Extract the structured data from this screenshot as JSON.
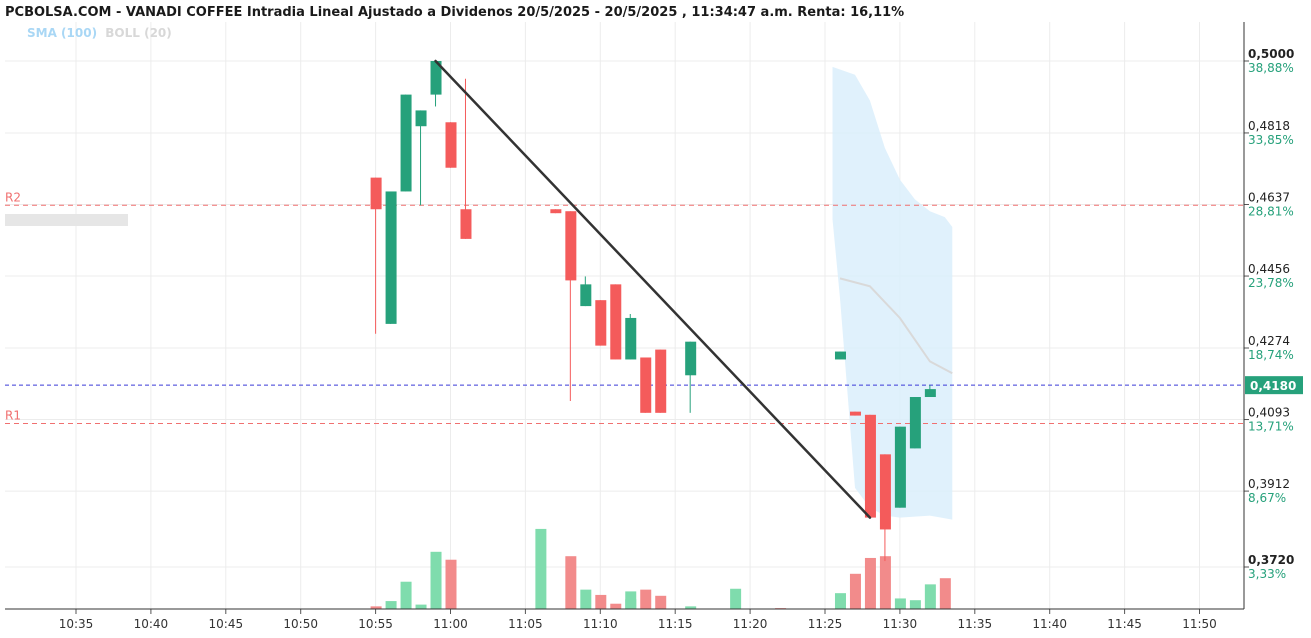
{
  "header": {
    "title": "PCBOLSA.COM - VANADI COFFEE Intradia Lineal Ajustado a Dividenos 20/5/2025 - 20/5/2025 , 11:34:47 a.m. Renta: 16,11%"
  },
  "legend": {
    "sma_label": "SMA (100)",
    "boll_label": "BOLL (20)"
  },
  "colors": {
    "up": "#26a17b",
    "down": "#f45b5b",
    "up_volume": "#7fdcad",
    "down_volume": "#f28b8b",
    "band_fill": "#dbeefc",
    "sma_line": "#d9d9d9",
    "resistance": "#f07070",
    "current_price_line": "#3a3ad8",
    "current_price_bg": "#26a17b",
    "trend_line": "#333333"
  },
  "chart_data": {
    "type": "candlestick",
    "title": "PCBOLSA.COM - VANADI COFFEE Intradia Lineal Ajustado a Dividenos 20/5/2025 - 20/5/2025 , 11:34:47 a.m. Renta: 16,11%",
    "x_ticks": [
      "10:35",
      "10:40",
      "10:45",
      "10:50",
      "10:55",
      "11:00",
      "11:05",
      "11:10",
      "11:15",
      "11:20",
      "11:25",
      "11:30",
      "11:35",
      "11:40",
      "11:45",
      "11:50"
    ],
    "y_ticks": [
      {
        "price": "0,5000",
        "pct": "38,88%"
      },
      {
        "price": "0,4818",
        "pct": "33,85%"
      },
      {
        "price": "0,4637",
        "pct": "28,81%"
      },
      {
        "price": "0,4456",
        "pct": "23,78%"
      },
      {
        "price": "0,4274",
        "pct": "18,74%"
      },
      {
        "price": "0,4093",
        "pct": "13,71%"
      },
      {
        "price": "0,3912",
        "pct": "8,67%"
      },
      {
        "price": "0,3720",
        "pct": "3,33%"
      }
    ],
    "ylim": [
      0.363,
      0.513
    ],
    "current_price": {
      "label": "0,4180",
      "value": 0.418
    },
    "resistance_lines": [
      {
        "label": "R2",
        "value": 0.4635
      },
      {
        "label": "R1",
        "value": 0.4083
      }
    ],
    "candles": [
      {
        "t": "10:55",
        "o": 0.4705,
        "h": 0.4705,
        "l": 0.431,
        "c": 0.4625
      },
      {
        "t": "10:56",
        "o": 0.4335,
        "h": 0.467,
        "l": 0.4335,
        "c": 0.467
      },
      {
        "t": "10:57",
        "o": 0.467,
        "h": 0.4915,
        "l": 0.467,
        "c": 0.4915
      },
      {
        "t": "10:58",
        "o": 0.4835,
        "h": 0.4875,
        "l": 0.4635,
        "c": 0.4875
      },
      {
        "t": "10:59",
        "o": 0.4915,
        "h": 0.5,
        "l": 0.4885,
        "c": 0.5
      },
      {
        "t": "11:00",
        "o": 0.4845,
        "h": 0.4845,
        "l": 0.473,
        "c": 0.473
      },
      {
        "t": "11:01",
        "o": 0.4625,
        "h": 0.4955,
        "l": 0.455,
        "c": 0.455
      },
      {
        "t": "11:07",
        "o": 0.4625,
        "h": 0.4625,
        "l": 0.4615,
        "c": 0.4615
      },
      {
        "t": "11:08",
        "o": 0.462,
        "h": 0.462,
        "l": 0.414,
        "c": 0.4445
      },
      {
        "t": "11:09",
        "o": 0.438,
        "h": 0.4455,
        "l": 0.438,
        "c": 0.4435
      },
      {
        "t": "11:10",
        "o": 0.4395,
        "h": 0.4395,
        "l": 0.428,
        "c": 0.428
      },
      {
        "t": "11:11",
        "o": 0.4435,
        "h": 0.4435,
        "l": 0.4245,
        "c": 0.4245
      },
      {
        "t": "11:12",
        "o": 0.4245,
        "h": 0.436,
        "l": 0.4245,
        "c": 0.435
      },
      {
        "t": "11:13",
        "o": 0.425,
        "h": 0.425,
        "l": 0.411,
        "c": 0.411
      },
      {
        "t": "11:14",
        "o": 0.427,
        "h": 0.427,
        "l": 0.411,
        "c": 0.411
      },
      {
        "t": "11:16",
        "o": 0.4205,
        "h": 0.429,
        "l": 0.411,
        "c": 0.429
      },
      {
        "t": "11:26",
        "o": 0.4245,
        "h": 0.4265,
        "l": 0.4245,
        "c": 0.4265
      },
      {
        "t": "11:27",
        "o": 0.4113,
        "h": 0.4113,
        "l": 0.4103,
        "c": 0.4103
      },
      {
        "t": "11:28",
        "o": 0.4105,
        "h": 0.4105,
        "l": 0.3845,
        "c": 0.3845
      },
      {
        "t": "11:29",
        "o": 0.4005,
        "h": 0.4005,
        "l": 0.3735,
        "c": 0.3815
      },
      {
        "t": "11:30",
        "o": 0.387,
        "h": 0.4075,
        "l": 0.387,
        "c": 0.4075
      },
      {
        "t": "11:31",
        "o": 0.402,
        "h": 0.415,
        "l": 0.402,
        "c": 0.415
      },
      {
        "t": "11:32",
        "o": 0.415,
        "h": 0.418,
        "l": 0.415,
        "c": 0.417
      }
    ],
    "volume_relative": [
      0.03,
      0.09,
      0.31,
      0.05,
      0.65,
      0.04,
      0.56,
      0.0,
      0.91,
      0.6,
      0.22,
      0.16,
      0.06,
      0.11,
      0.2,
      0.22,
      0.15,
      0.03,
      0.23,
      0.01,
      0.18,
      0.4,
      0.58,
      0.6,
      0.12,
      0.1,
      0.28,
      0.35
    ],
    "volume_times": [
      "10:55",
      "10:56",
      "10:57",
      "10:58",
      "10:59",
      "11:00",
      "11:00",
      "11:06",
      "11:06",
      "11:08",
      "11:09",
      "11:10",
      "11:11",
      "11:12",
      "11:12",
      "11:13",
      "11:14",
      "11:16",
      "11:19",
      "11:22",
      "11:26",
      "11:27",
      "11:28",
      "11:29",
      "11:30",
      "11:31",
      "11:32",
      "11:33"
    ],
    "trend_line": [
      {
        "t": "10:59",
        "price": 0.5
      },
      {
        "t": "11:28",
        "price": 0.3845
      }
    ],
    "bollinger_band": {
      "upper": [
        {
          "t": "11:25.5",
          "price": 0.4985
        },
        {
          "t": "11:27",
          "price": 0.4965
        },
        {
          "t": "11:28",
          "price": 0.49
        },
        {
          "t": "11:29",
          "price": 0.478
        },
        {
          "t": "11:30",
          "price": 0.47
        },
        {
          "t": "11:31",
          "price": 0.465
        },
        {
          "t": "11:32",
          "price": 0.462
        },
        {
          "t": "11:33",
          "price": 0.4605
        },
        {
          "t": "11:33.5",
          "price": 0.458
        }
      ],
      "lower": [
        {
          "t": "11:33.5",
          "price": 0.384
        },
        {
          "t": "11:32",
          "price": 0.385
        },
        {
          "t": "11:30",
          "price": 0.3845
        },
        {
          "t": "11:29",
          "price": 0.385
        },
        {
          "t": "11:28",
          "price": 0.387
        },
        {
          "t": "11:27",
          "price": 0.392
        },
        {
          "t": "11:26",
          "price": 0.44
        },
        {
          "t": "11:25.5",
          "price": 0.46
        }
      ]
    },
    "sma_line": [
      {
        "t": "11:26",
        "price": 0.445
      },
      {
        "t": "11:28",
        "price": 0.443
      },
      {
        "t": "11:30",
        "price": 0.435
      },
      {
        "t": "11:32",
        "price": 0.424
      },
      {
        "t": "11:33.5",
        "price": 0.421
      }
    ]
  }
}
